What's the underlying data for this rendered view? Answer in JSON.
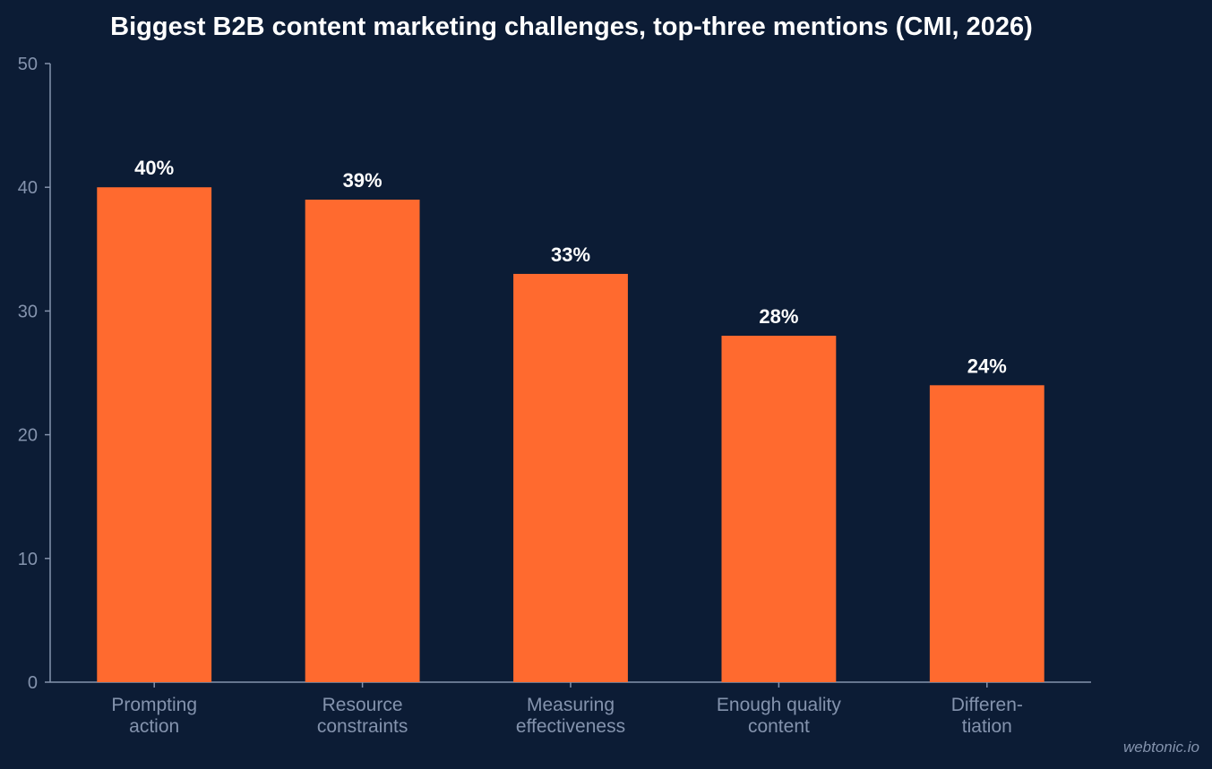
{
  "chart_data": {
    "type": "bar",
    "title": "Biggest B2B content marketing challenges, top-three mentions (CMI, 2026)",
    "categories": [
      [
        "Prompting",
        "action"
      ],
      [
        "Resource",
        "constraints"
      ],
      [
        "Measuring",
        "effectiveness"
      ],
      [
        "Enough quality",
        "content"
      ],
      [
        "Differen-",
        "tiation"
      ]
    ],
    "values": [
      40,
      39,
      33,
      28,
      24
    ],
    "data_labels": [
      "40%",
      "39%",
      "33%",
      "28%",
      "24%"
    ],
    "ylim": [
      0,
      50
    ],
    "yticks": [
      0,
      10,
      20,
      30,
      40,
      50
    ],
    "xlabel": "",
    "ylabel": "",
    "grid": false,
    "legend": "none",
    "colors": {
      "background": "#0c1c35",
      "bar": "#ff6a2f",
      "axis": "#8493ad",
      "text": "#ffffff"
    }
  },
  "watermark": "webtonic.io"
}
